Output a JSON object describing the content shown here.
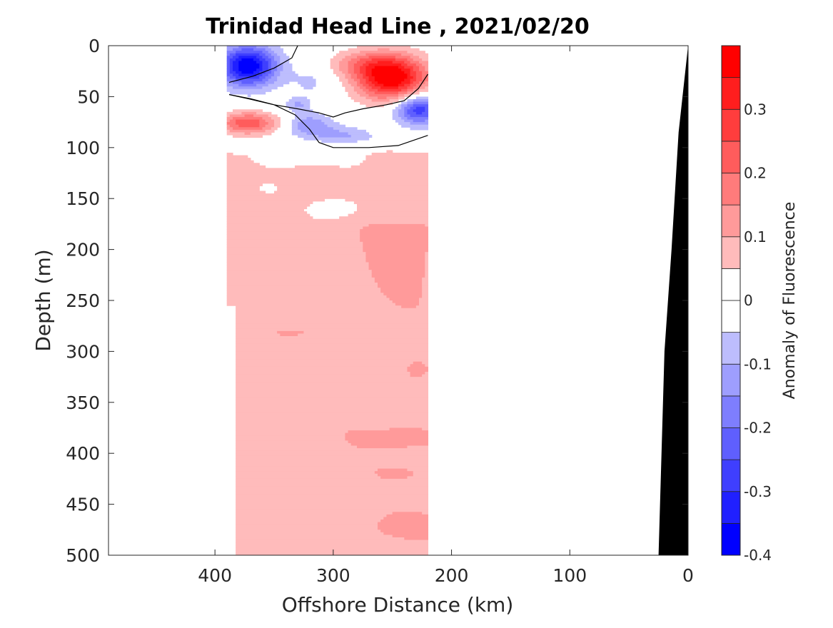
{
  "chart_data": {
    "type": "heatmap",
    "subtype": "filled-contour section",
    "title": "Trinidad Head Line , 2021/02/20",
    "xlabel": "Offshore Distance (km)",
    "ylabel": "Depth (m)",
    "xlim": [
      490,
      0
    ],
    "ylim": [
      0,
      500
    ],
    "x_reversed": true,
    "y_reversed": true,
    "x_ticks": [
      400,
      300,
      200,
      100,
      0
    ],
    "y_ticks": [
      0,
      50,
      100,
      150,
      200,
      250,
      300,
      350,
      400,
      450,
      500
    ],
    "data_extent_km": [
      390,
      220
    ],
    "colorbar": {
      "label": "Anomaly of Fluorescence",
      "range": [
        -0.4,
        0.4
      ],
      "level_step": 0.05,
      "ticks": [
        0.3,
        0.2,
        0.1,
        0,
        -0.1,
        -0.2,
        -0.3,
        -0.4
      ],
      "tick_labels": [
        "0.3",
        "0.2",
        "0.1",
        "0",
        "-0.1",
        "-0.2",
        "-0.3",
        "-0.4"
      ]
    },
    "zero_contour": true,
    "bathymetry_color": "#000000",
    "grid": false,
    "features": [
      {
        "kind": "negative-core",
        "x_km": 375,
        "depth_m": 20,
        "anomaly": -0.35
      },
      {
        "kind": "positive-core",
        "x_km": 250,
        "depth_m": 35,
        "anomaly": 0.35
      },
      {
        "kind": "positive-core",
        "x_km": 375,
        "depth_m": 75,
        "anomaly": 0.2
      },
      {
        "kind": "negative-core",
        "x_km": 230,
        "depth_m": 65,
        "anomaly": -0.25
      },
      {
        "kind": "background",
        "depth_range_m": [
          100,
          500
        ],
        "anomaly": 0.05
      }
    ]
  }
}
